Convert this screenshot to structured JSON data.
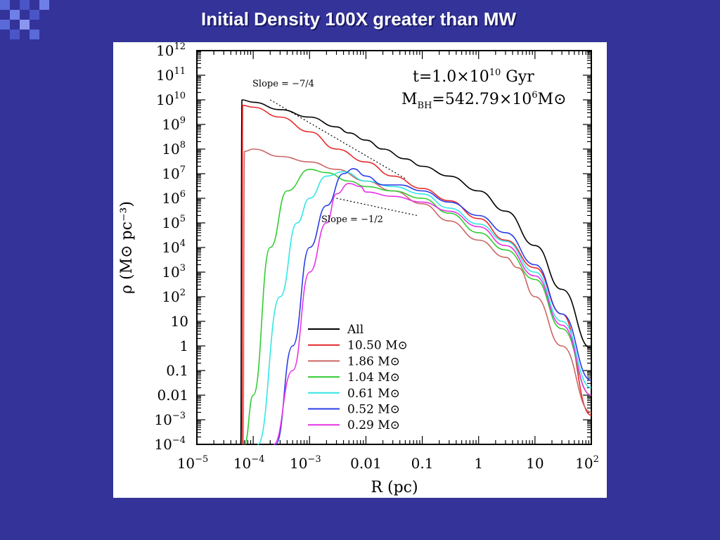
{
  "slide": {
    "title": "Initial Density 100X greater than MW"
  },
  "chart_data": {
    "type": "line",
    "title": "",
    "xlabel": "R (pc)",
    "ylabel": "ρ (M⊙ pc⁻³)",
    "xscale": "log",
    "yscale": "log",
    "xlim": [
      1e-05,
      100
    ],
    "ylim": [
      0.0001,
      1000000000000
    ],
    "x_tick_labels": [
      {
        "base": "10",
        "exp": "−5"
      },
      {
        "base": "10",
        "exp": "−4"
      },
      {
        "base": "10",
        "exp": "−3"
      },
      {
        "base": "0.01",
        "exp": ""
      },
      {
        "base": "0.1",
        "exp": ""
      },
      {
        "base": "1",
        "exp": ""
      },
      {
        "base": "10",
        "exp": ""
      },
      {
        "base": "10",
        "exp": "2"
      }
    ],
    "y_tick_labels": [
      {
        "base": "10",
        "exp": "−4"
      },
      {
        "base": "10",
        "exp": "−3"
      },
      {
        "base": "0.01",
        "exp": ""
      },
      {
        "base": "0.1",
        "exp": ""
      },
      {
        "base": "1",
        "exp": ""
      },
      {
        "base": "10",
        "exp": ""
      },
      {
        "base": "10",
        "exp": "2"
      },
      {
        "base": "10",
        "exp": "3"
      },
      {
        "base": "10",
        "exp": "4"
      },
      {
        "base": "10",
        "exp": "5"
      },
      {
        "base": "10",
        "exp": "6"
      },
      {
        "base": "10",
        "exp": "7"
      },
      {
        "base": "10",
        "exp": "8"
      },
      {
        "base": "10",
        "exp": "9"
      },
      {
        "base": "10",
        "exp": "10"
      },
      {
        "base": "10",
        "exp": "11"
      },
      {
        "base": "10",
        "exp": "12"
      }
    ],
    "annotations": {
      "time_label": "t=1.0×10",
      "time_exp": "10",
      "time_unit": "Gyr",
      "mbh_prefix": "M",
      "mbh_sub": "BH",
      "mbh_value": "=542.79×10",
      "mbh_exp": "6",
      "mbh_unit": "M⊙",
      "slope_steep_label": "Slope = −7/4",
      "slope_shallow_label": "Slope = −1/2"
    },
    "slope_lines": [
      {
        "label": "Slope = −7/4",
        "points": [
          [
            0.0002,
            10000000000.0
          ],
          [
            0.05,
            6300000.0
          ]
        ]
      },
      {
        "label": "Slope = −1/2",
        "points": [
          [
            0.003,
            1000000.0
          ],
          [
            0.08,
            200000.0
          ]
        ]
      }
    ],
    "legend_position": "lower-center",
    "series": [
      {
        "name": "All",
        "unit": "",
        "color": "#000000",
        "points": [
          [
            6e-05,
            0.0001
          ],
          [
            6.3e-05,
            10000000000.0
          ],
          [
            0.0001,
            8000000000.0
          ],
          [
            0.0003,
            4000000000.0
          ],
          [
            0.001,
            2000000000.0
          ],
          [
            0.003,
            800000000.0
          ],
          [
            0.005,
            450000000.0
          ],
          [
            0.01,
            230000000.0
          ],
          [
            0.02,
            100000000.0
          ],
          [
            0.05,
            40000000.0
          ],
          [
            0.1,
            20000000.0
          ],
          [
            0.3,
            8000000.0
          ],
          [
            1,
            2000000.0
          ],
          [
            3,
            300000.0
          ],
          [
            10,
            12000.0
          ],
          [
            30,
            200.0
          ],
          [
            100,
            0.8
          ]
        ]
      },
      {
        "name": "10.50",
        "unit": "M⊙",
        "color": "#e8282a",
        "points": [
          [
            6.3e-05,
            0.0001
          ],
          [
            6.5e-05,
            6000000000.0
          ],
          [
            0.0001,
            5000000000.0
          ],
          [
            0.0003,
            2000000000.0
          ],
          [
            0.001,
            500000000.0
          ],
          [
            0.003,
            100000000.0
          ],
          [
            0.01,
            30000000.0
          ],
          [
            0.03,
            8000000.0
          ],
          [
            0.1,
            2500000.0
          ],
          [
            0.3,
            800000.0
          ],
          [
            1,
            150000.0
          ],
          [
            3,
            20000.0
          ],
          [
            10,
            1500.0
          ],
          [
            30,
            20
          ],
          [
            100,
            0.0015
          ]
        ]
      },
      {
        "name": "1.86",
        "unit": "M⊙",
        "color": "#cc6666",
        "points": [
          [
            6.6e-05,
            0.0001
          ],
          [
            7e-05,
            80000000.0
          ],
          [
            0.0001,
            100000000.0
          ],
          [
            0.0003,
            50000000.0
          ],
          [
            0.001,
            30000000.0
          ],
          [
            0.003,
            15000000.0
          ],
          [
            0.01,
            5000000.0
          ],
          [
            0.03,
            2000000.0
          ],
          [
            0.1,
            600000.0
          ],
          [
            0.3,
            120000.0
          ],
          [
            1,
            20000.0
          ],
          [
            3,
            4000.0
          ],
          [
            5,
            1500.0
          ],
          [
            10,
            100.0
          ],
          [
            30,
            1
          ],
          [
            100,
            0.002
          ]
        ]
      },
      {
        "name": "1.04",
        "unit": "M⊙",
        "color": "#33cc33",
        "points": [
          [
            7e-05,
            0.0001
          ],
          [
            0.0001,
            0.01
          ],
          [
            0.0002,
            10000.0
          ],
          [
            0.0004,
            2000000.0
          ],
          [
            0.001,
            15000000.0
          ],
          [
            0.002,
            11000000.0
          ],
          [
            0.005,
            5000000.0
          ],
          [
            0.01,
            3000000.0
          ],
          [
            0.03,
            2000000.0
          ],
          [
            0.1,
            1000000.0
          ],
          [
            0.3,
            250000.0
          ],
          [
            1,
            40000.0
          ],
          [
            3,
            8000.0
          ],
          [
            10,
            500.0
          ],
          [
            30,
            5
          ],
          [
            100,
            0.01
          ]
        ]
      },
      {
        "name": "0.61",
        "unit": "M⊙",
        "color": "#33e6e6",
        "points": [
          [
            0.00012,
            0.0001
          ],
          [
            0.0003,
            100.0
          ],
          [
            0.0006,
            100000.0
          ],
          [
            0.001,
            1000000.0
          ],
          [
            0.002,
            8000000.0
          ],
          [
            0.004,
            12000000.0
          ],
          [
            0.01,
            5000000.0
          ],
          [
            0.03,
            3000000.0
          ],
          [
            0.1,
            1500000.0
          ],
          [
            0.3,
            400000.0
          ],
          [
            1,
            90000.0
          ],
          [
            3,
            18000.0
          ],
          [
            10,
            1000.0
          ],
          [
            30,
            10
          ],
          [
            100,
            0.02
          ]
        ]
      },
      {
        "name": "0.52",
        "unit": "M⊙",
        "color": "#2a3de6",
        "points": [
          [
            0.00025,
            0.0001
          ],
          [
            0.0005,
            1
          ],
          [
            0.001,
            10000.0
          ],
          [
            0.002,
            500000.0
          ],
          [
            0.004,
            10000000.0
          ],
          [
            0.006,
            16000000.0
          ],
          [
            0.01,
            8000000.0
          ],
          [
            0.02,
            3500000.0
          ],
          [
            0.04,
            3500000.0
          ],
          [
            0.1,
            2000000.0
          ],
          [
            0.3,
            700000.0
          ],
          [
            1,
            200000.0
          ],
          [
            3,
            40000.0
          ],
          [
            10,
            2000.0
          ],
          [
            30,
            20
          ],
          [
            100,
            0.04
          ]
        ]
      },
      {
        "name": "0.29",
        "unit": "M⊙",
        "color": "#e833e6",
        "points": [
          [
            0.00023,
            0.0001
          ],
          [
            0.0005,
            0.1
          ],
          [
            0.001,
            1000.0
          ],
          [
            0.002,
            100000.0
          ],
          [
            0.003,
            1500000.0
          ],
          [
            0.005,
            4000000.0
          ],
          [
            0.008,
            3000000.0
          ],
          [
            0.01,
            1800000.0
          ],
          [
            0.03,
            1200000.0
          ],
          [
            0.1,
            700000.0
          ],
          [
            0.3,
            300000.0
          ],
          [
            1,
            70000.0
          ],
          [
            3,
            12000.0
          ],
          [
            10,
            700.0
          ],
          [
            30,
            7
          ],
          [
            100,
            0.01
          ]
        ]
      }
    ]
  }
}
